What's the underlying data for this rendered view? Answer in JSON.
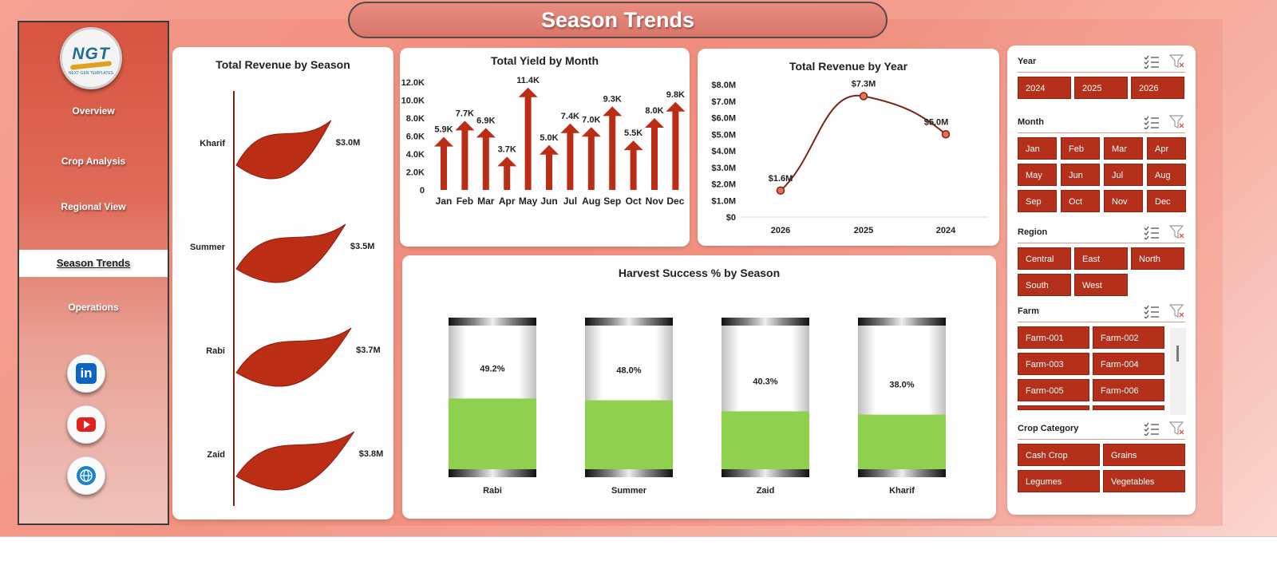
{
  "title": "Season Trends",
  "logo": {
    "text": "NGT",
    "subtext": "NEXT GEN TEMPLATES"
  },
  "nav": {
    "items": [
      {
        "label": "Overview"
      },
      {
        "label": "Crop Analysis"
      },
      {
        "label": "Regional View"
      },
      {
        "label": "Season Trends",
        "active": true
      },
      {
        "label": "Operations"
      }
    ]
  },
  "social": [
    {
      "icon": "linkedin-icon",
      "label": "in"
    },
    {
      "icon": "youtube-icon"
    },
    {
      "icon": "globe-icon"
    }
  ],
  "colors": {
    "accent": "#b4301a",
    "bar": "#bc2d15",
    "gauge_fill": "#8fd14f",
    "line": "#7a2418"
  },
  "chart_data": [
    {
      "type": "bar",
      "title": "Total Revenue  by Season",
      "categories": [
        "Kharif",
        "Summer",
        "Rabi",
        "Zaid"
      ],
      "values": [
        3.0,
        3.5,
        3.7,
        3.8
      ],
      "value_labels": [
        "$3.0M",
        "$3.5M",
        "$3.7M",
        "$3.8M"
      ],
      "units": "$M",
      "mark": "flag"
    },
    {
      "type": "bar",
      "title": "Total Yield by Month",
      "categories": [
        "Jan",
        "Feb",
        "Mar",
        "Apr",
        "May",
        "Jun",
        "Jul",
        "Aug",
        "Sep",
        "Oct",
        "Nov",
        "Dec"
      ],
      "values": [
        5.9,
        7.7,
        6.9,
        3.7,
        11.4,
        5.0,
        7.4,
        7.0,
        9.3,
        5.5,
        8.0,
        9.8
      ],
      "value_labels": [
        "5.9K",
        "7.7K",
        "6.9K",
        "3.7K",
        "11.4K",
        "5.0K",
        "7.4K",
        "7.0K",
        "9.3K",
        "5.5K",
        "8.0K",
        "9.8K"
      ],
      "units": "K",
      "ylim": [
        0,
        12
      ],
      "yticks": [
        "0",
        "2.0K",
        "4.0K",
        "6.0K",
        "8.0K",
        "10.0K",
        "12.0K"
      ],
      "mark": "arrow"
    },
    {
      "type": "line",
      "title": "Total Revenue  by Year",
      "categories": [
        "2026",
        "2025",
        "2024"
      ],
      "values": [
        1.6,
        7.3,
        5.0
      ],
      "value_labels": [
        "$1.6M",
        "$7.3M",
        "$5.0M"
      ],
      "ylim": [
        0,
        8
      ],
      "yticks": [
        "$0",
        "$1.0M",
        "$2.0M",
        "$3.0M",
        "$4.0M",
        "$5.0M",
        "$6.0M",
        "$7.0M",
        "$8.0M"
      ],
      "smooth": true
    },
    {
      "type": "bar",
      "title": "Harvest Success % by Season",
      "categories": [
        "Rabi",
        "Summer",
        "Zaid",
        "Kharif"
      ],
      "values": [
        49.2,
        48.0,
        40.3,
        38.0
      ],
      "value_labels": [
        "49.2%",
        "48.0%",
        "40.3%",
        "38.0%"
      ],
      "ylim": [
        0,
        100
      ],
      "mark": "cylinder-gauge"
    }
  ],
  "slicers": [
    {
      "label": "Year",
      "items": [
        "2024",
        "2025",
        "2026"
      ]
    },
    {
      "label": "Month",
      "items": [
        "Jan",
        "Feb",
        "Mar",
        "Apr",
        "May",
        "Jun",
        "Jul",
        "Aug",
        "Sep",
        "Oct",
        "Nov",
        "Dec"
      ]
    },
    {
      "label": "Region",
      "items": [
        "Central",
        "East",
        "North",
        "South",
        "West"
      ]
    },
    {
      "label": "Farm",
      "items": [
        "Farm-001",
        "Farm-002",
        "Farm-003",
        "Farm-004",
        "Farm-005",
        "Farm-006"
      ]
    },
    {
      "label": "Crop Category",
      "items": [
        "Cash Crop",
        "Grains",
        "Legumes",
        "Vegetables"
      ]
    }
  ]
}
